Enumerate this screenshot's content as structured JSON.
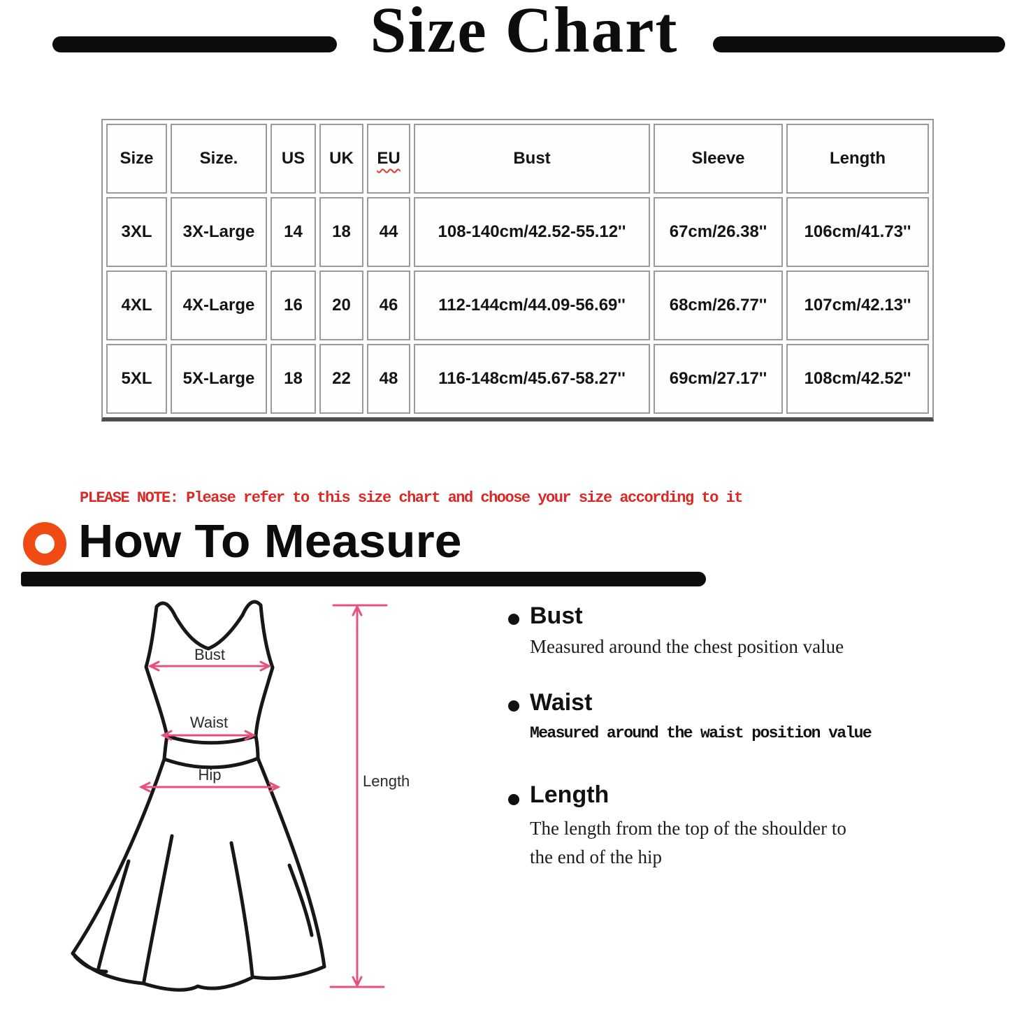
{
  "page": {
    "title": "Size Chart"
  },
  "size_table": {
    "headers": [
      "Size",
      "Size.",
      "US",
      "UK",
      "EU",
      "Bust",
      "Sleeve",
      "Length"
    ],
    "rows": [
      [
        "3XL",
        "3X-Large",
        "14",
        "18",
        "44",
        "108-140cm/42.52-55.12''",
        "67cm/26.38''",
        "106cm/41.73''"
      ],
      [
        "4XL",
        "4X-Large",
        "16",
        "20",
        "46",
        "112-144cm/44.09-56.69''",
        "68cm/26.77''",
        "107cm/42.13''"
      ],
      [
        "5XL",
        "5X-Large",
        "18",
        "22",
        "48",
        "116-148cm/45.67-58.27''",
        "69cm/27.17''",
        "108cm/42.52''"
      ]
    ]
  },
  "note": {
    "text": "PLEASE NOTE: Please refer to this size chart and choose your size according to it"
  },
  "how_to_measure": {
    "title": "How To Measure"
  },
  "diagram_labels": {
    "bust": "Bust",
    "waist": "Waist",
    "hip": "Hip",
    "length": "Length"
  },
  "measure_guide": [
    {
      "term": "Bust",
      "description": "Measured around the chest position value"
    },
    {
      "term": "Waist",
      "description": "Measured around the waist position value"
    },
    {
      "term": "Length",
      "description": "The length from the top of the shoulder to the end of the hip"
    }
  ],
  "colors": {
    "accent_orange": "#f04b12",
    "note_red": "#d92a25",
    "measure_pink": "#e4537b",
    "table_border_gray": "#9a9a9a"
  }
}
